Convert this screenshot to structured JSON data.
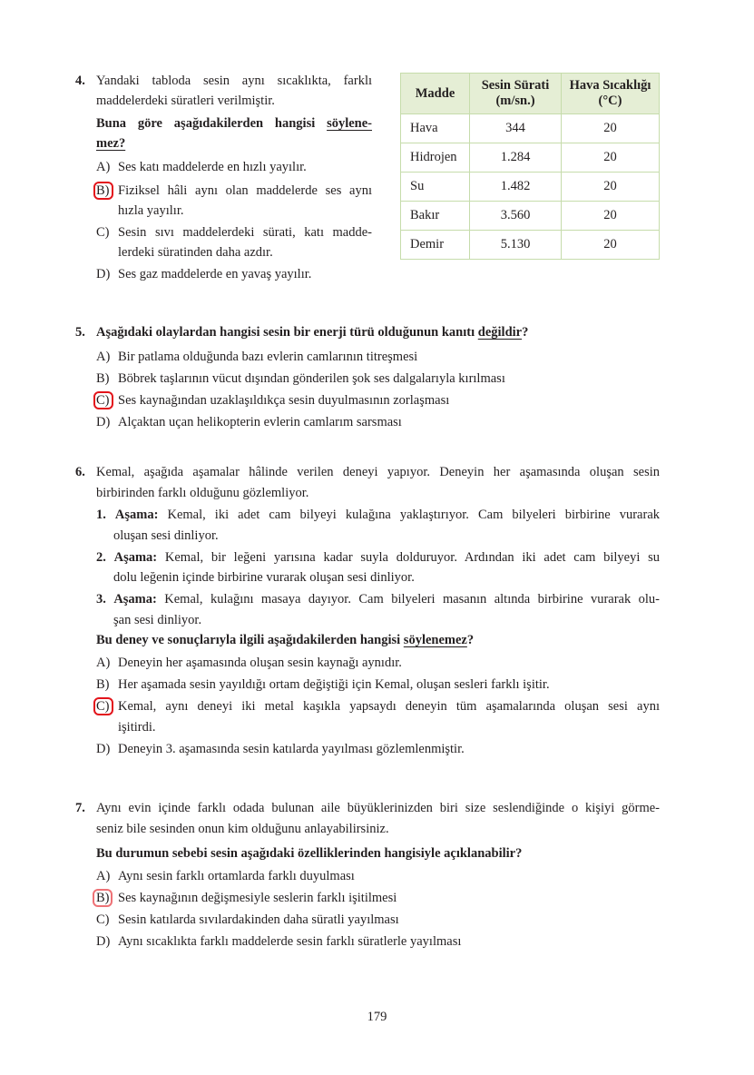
{
  "page_number": "179",
  "accent_color": "#e3141b",
  "q4": {
    "number": "4.",
    "lines": [
      "Yandaki tabloda sesin aynı sıcaklıkta, farklı",
      "maddelerdeki süratleri verilmiştir."
    ],
    "question_pre": "Buna göre aşağıdakilerden hangisi ",
    "question_u1": "söylene-",
    "question_u2": "mez?",
    "options": [
      {
        "letter": "A)",
        "lines": [
          "Ses katı maddelerde en hızlı yayılır."
        ]
      },
      {
        "letter": "B)",
        "lines": [
          "Fiziksel hâli aynı olan maddelerde ses aynı",
          "hızla yayılır."
        ],
        "marked": true
      },
      {
        "letter": "C)",
        "lines": [
          "Sesin sıvı maddelerdeki sürati, katı madde-",
          "lerdeki süratinden daha azdır."
        ]
      },
      {
        "letter": "D)",
        "lines": [
          "Ses gaz maddelerde en yavaş yayılır."
        ]
      }
    ],
    "table": {
      "headers": [
        "Madde",
        "Sesin Sürati",
        "(m/sn.)",
        "Hava Sıcaklığı",
        "(°C)"
      ],
      "rows": [
        [
          "Hava",
          "344",
          "20"
        ],
        [
          "Hidrojen",
          "1.284",
          "20"
        ],
        [
          "Su",
          "1.482",
          "20"
        ],
        [
          "Bakır",
          "3.560",
          "20"
        ],
        [
          "Demir",
          "5.130",
          "20"
        ]
      ]
    }
  },
  "q5": {
    "number": "5.",
    "question_pre": "Aşağıdaki olaylardan hangisi sesin bir enerji türü olduğunun kanıtı ",
    "question_u": "değildir",
    "question_post": "?",
    "options": [
      {
        "letter": "A)",
        "text": "Bir patlama olduğunda bazı evlerin camlarının titreşmesi"
      },
      {
        "letter": "B)",
        "text": "Böbrek taşlarının vücut dışından gönderilen şok ses dalgalarıyla kırılması"
      },
      {
        "letter": "C)",
        "text": "Ses kaynağından uzaklaşıldıkça sesin duyulmasının zorlaşması",
        "marked": true
      },
      {
        "letter": "D)",
        "text": "Alçaktan uçan helikopterin evlerin camlarım sarsması"
      }
    ]
  },
  "q6": {
    "number": "6.",
    "lines": [
      "Kemal, aşağıda aşamalar hâlinde verilen deneyi yapıyor. Deneyin her aşamasında oluşan sesin",
      "birbirinden farklı olduğunu gözlemliyor."
    ],
    "steps": [
      {
        "num": "1.",
        "label": "Aşama:",
        "lines": [
          " Kemal, iki adet cam bilyeyi kulağına yaklaştırıyor. Cam bilyeleri birbirine vurarak",
          "oluşan sesi dinliyor."
        ]
      },
      {
        "num": "2.",
        "label": "Aşama:",
        "lines": [
          " Kemal, bir leğeni yarısına kadar suyla dolduruyor. Ardından iki adet cam bilyeyi su",
          "dolu leğenin içinde birbirine vurarak oluşan sesi dinliyor."
        ]
      },
      {
        "num": "3.",
        "label": "Aşama:",
        "lines": [
          " Kemal, kulağını masaya dayıyor. Cam bilyeleri masanın altında birbirine vurarak olu-",
          "şan sesi dinliyor."
        ]
      }
    ],
    "question_pre": "Bu deney ve sonuçlarıyla ilgili aşağıdakilerden hangisi ",
    "question_u": "söylenemez",
    "question_post": "?",
    "options": [
      {
        "letter": "A)",
        "lines": [
          "Deneyin her aşamasında oluşan sesin kaynağı aynıdır."
        ]
      },
      {
        "letter": "B)",
        "lines": [
          "Her aşamada sesin yayıldığı ortam değiştiği için Kemal, oluşan sesleri farklı işitir."
        ]
      },
      {
        "letter": "C)",
        "lines": [
          "Kemal, aynı deneyi iki metal kaşıkla yapsaydı deneyin tüm aşamalarında oluşan sesi aynı",
          "işitirdi."
        ],
        "marked": true
      },
      {
        "letter": "D)",
        "lines": [
          "Deneyin 3. aşamasında sesin katılarda yayılması gözlemlenmiştir."
        ]
      }
    ]
  },
  "q7": {
    "number": "7.",
    "lines": [
      "Aynı evin içinde farklı odada bulunan aile büyüklerinizden biri size seslendiğinde o kişiyi görme-",
      "seniz bile sesinden onun kim olduğunu anlayabilirsiniz."
    ],
    "question": "Bu durumun sebebi sesin aşağıdaki özelliklerinden hangisiyle açıklanabilir?",
    "options": [
      {
        "letter": "A)",
        "text": "Aynı sesin farklı ortamlarda farklı duyulması"
      },
      {
        "letter": "B)",
        "text": "Ses kaynağının değişmesiyle seslerin farklı işitilmesi",
        "marked": true
      },
      {
        "letter": "C)",
        "text": "Sesin katılarda sıvılardakinden daha süratli yayılması"
      },
      {
        "letter": "D)",
        "text": "Aynı sıcaklıkta farklı maddelerde sesin farklı süratlerle yayılması"
      }
    ]
  }
}
